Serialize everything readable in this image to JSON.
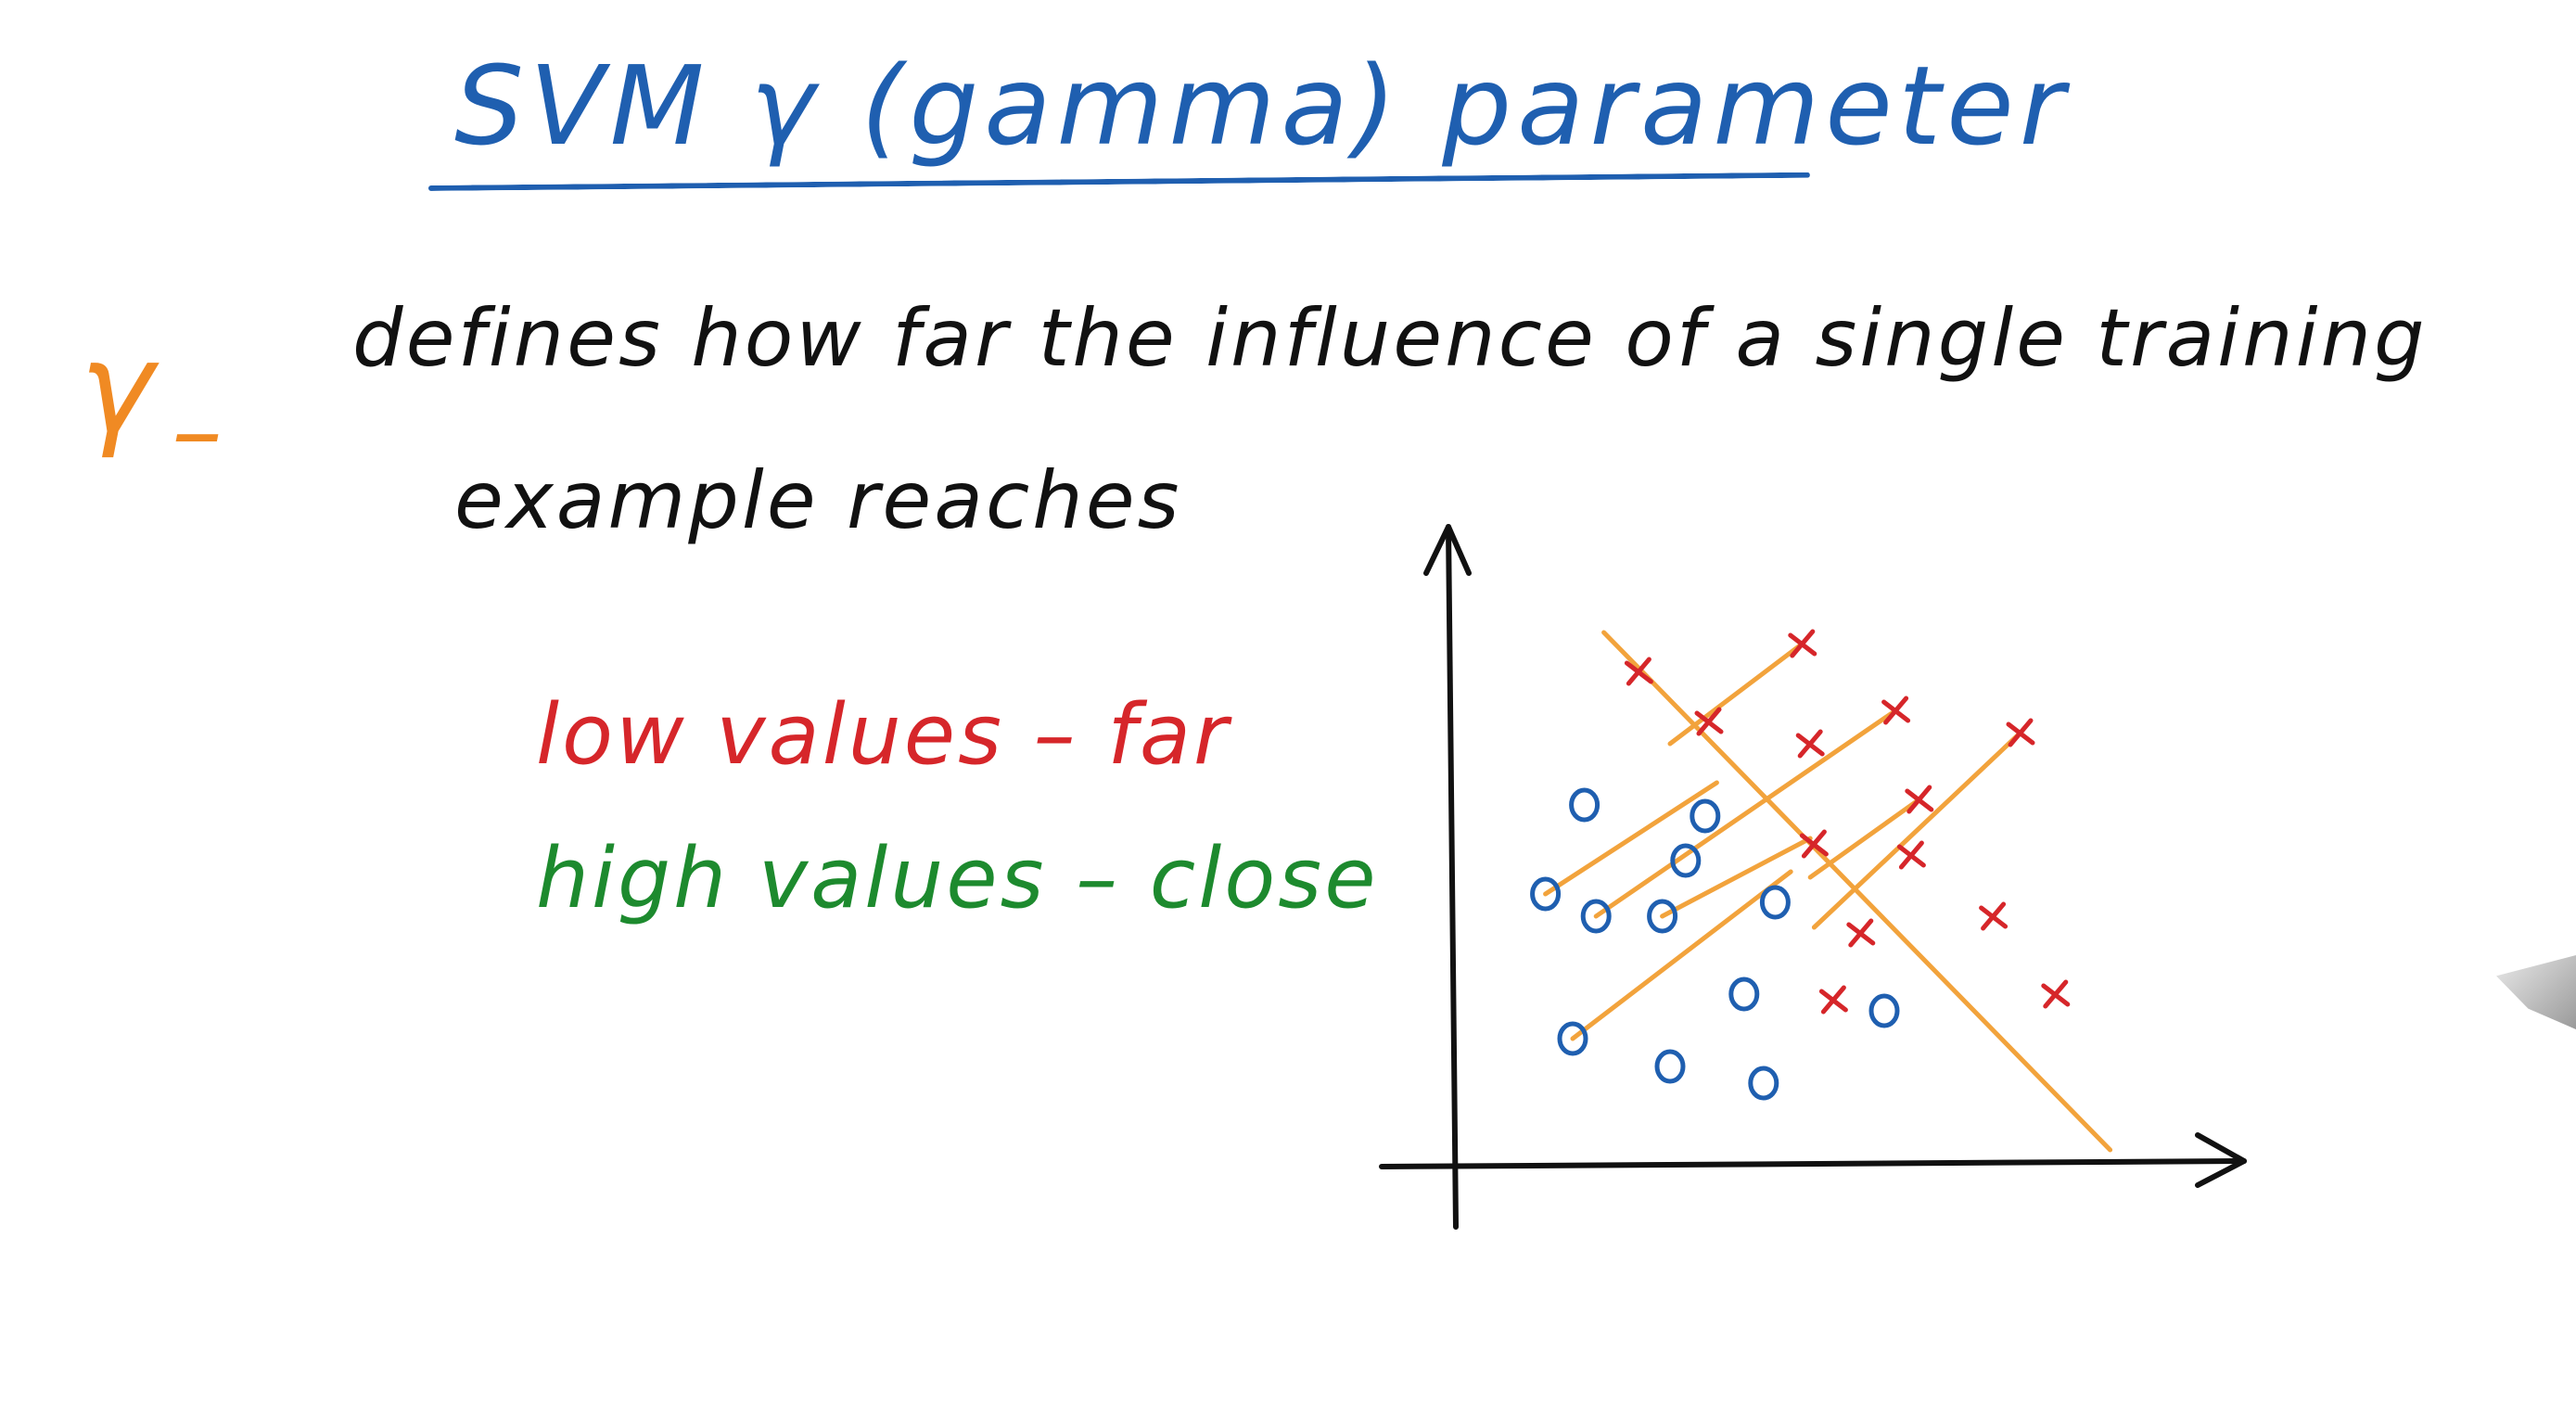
{
  "title": "SVM   γ (gamma) parameter",
  "gamma_symbol": "γ",
  "gamma_dash": "–",
  "definition": {
    "line1": "defines how far the influence of a single training",
    "line2": "example reaches"
  },
  "legend": {
    "low": "low values – far",
    "high": "high values – close"
  },
  "colors": {
    "title": "#1f5fb0",
    "gamma": "#f08a23",
    "text": "#111111",
    "low": "#d6262a",
    "high": "#1d8a2e",
    "class_o": "#1f5fb0",
    "class_x": "#d6262a",
    "influence_lines": "#f2a33c",
    "axes": "#111111"
  },
  "chart_data": {
    "type": "scatter",
    "title": "",
    "xlabel": "",
    "ylabel": "",
    "xlim": [
      0,
      10
    ],
    "ylim": [
      0,
      10
    ],
    "grid": false,
    "series": [
      {
        "marker": "o",
        "points": [
          [
            1.65,
            6.5
          ],
          [
            1.15,
            4.9
          ],
          [
            1.8,
            4.5
          ],
          [
            3.2,
            6.3
          ],
          [
            2.95,
            5.5
          ],
          [
            2.65,
            4.5
          ],
          [
            4.1,
            4.75
          ],
          [
            3.7,
            3.1
          ],
          [
            1.5,
            2.3
          ],
          [
            2.75,
            1.8
          ],
          [
            3.95,
            1.5
          ],
          [
            5.5,
            2.8
          ]
        ]
      },
      {
        "marker": "x",
        "points": [
          [
            2.35,
            8.9
          ],
          [
            4.45,
            9.4
          ],
          [
            3.25,
            8.0
          ],
          [
            4.55,
            7.6
          ],
          [
            5.65,
            8.2
          ],
          [
            7.25,
            7.8
          ],
          [
            5.95,
            6.6
          ],
          [
            4.6,
            5.8
          ],
          [
            5.85,
            5.6
          ],
          [
            5.2,
            4.2
          ],
          [
            6.9,
            4.5
          ],
          [
            4.85,
            3.0
          ],
          [
            7.7,
            3.1
          ]
        ]
      }
    ],
    "decision_boundary": [
      [
        1.9,
        9.6
      ],
      [
        8.4,
        0.3
      ]
    ],
    "influence_segments": [
      [
        [
          2.75,
          7.6
        ],
        [
          4.45,
          9.4
        ]
      ],
      [
        [
          1.15,
          4.9
        ],
        [
          3.35,
          6.9
        ]
      ],
      [
        [
          1.8,
          4.5
        ],
        [
          5.65,
          8.2
        ]
      ],
      [
        [
          2.65,
          4.5
        ],
        [
          4.55,
          5.9
        ]
      ],
      [
        [
          4.55,
          5.2
        ],
        [
          5.95,
          6.6
        ]
      ],
      [
        [
          1.5,
          2.3
        ],
        [
          4.3,
          5.3
        ]
      ],
      [
        [
          4.6,
          4.3
        ],
        [
          7.25,
          7.8
        ]
      ]
    ]
  }
}
